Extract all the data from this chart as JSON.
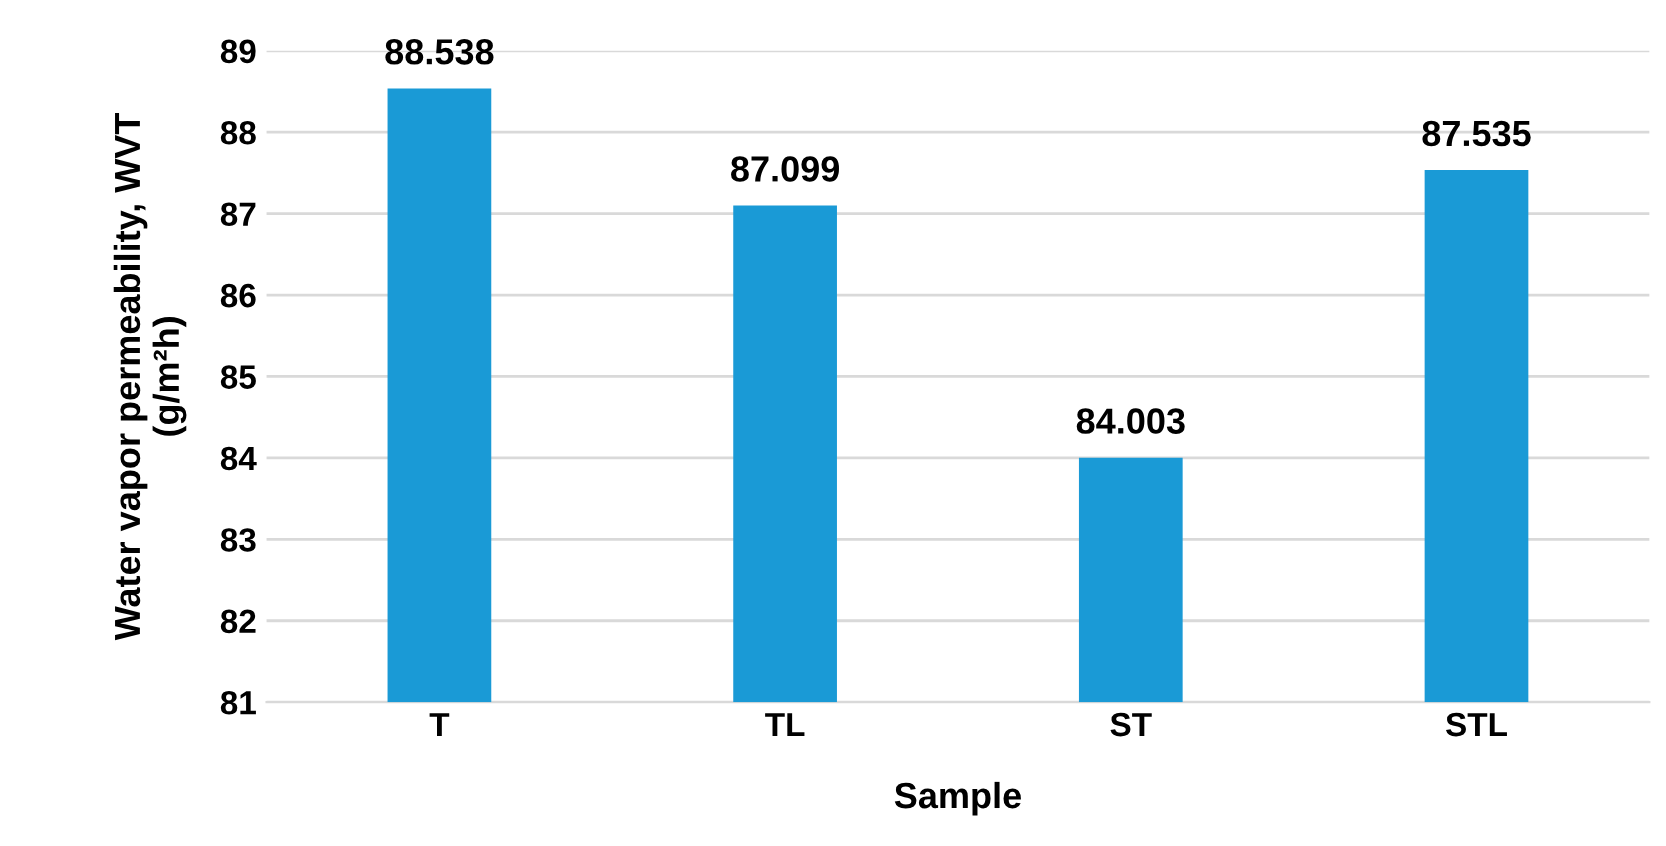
{
  "chart_data": {
    "type": "bar",
    "xlabel": "Sample",
    "ylabel": "Water vapor permeability, WVT\n(g/m²h)",
    "categories": [
      "T",
      "TL",
      "ST",
      "STL"
    ],
    "values": [
      88.538,
      87.099,
      84.003,
      87.535
    ],
    "color": "#1a9ad6",
    "ylim": [
      81,
      89
    ],
    "yticks": [
      81,
      82,
      83,
      84,
      85,
      86,
      87,
      88,
      89
    ],
    "grid": "y",
    "data_labels": true
  }
}
